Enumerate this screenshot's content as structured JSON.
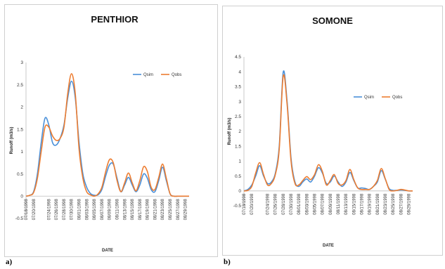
{
  "labels": {
    "a": "a)",
    "b": "b)"
  },
  "chart_data": [
    {
      "type": "line",
      "title": "PENTHIOR",
      "xlabel": "DATE",
      "ylabel": "Runoff (m3/s)",
      "ylim": [
        -0.5,
        3
      ],
      "yticks": [
        "3",
        "2.5",
        "2",
        "1.5",
        "1",
        "0.5",
        "0",
        "-0.5"
      ],
      "ytick_values": [
        3,
        2.5,
        2,
        1.5,
        1,
        0.5,
        0,
        -0.5
      ],
      "legend_position": "top-right",
      "x": [
        "07/18/1998",
        "07/19/1998",
        "07/20/1998",
        "07/21/1998",
        "07/22/1998",
        "07/23/1998",
        "07/24/1998",
        "07/25/1998",
        "07/26/1998",
        "07/27/1998",
        "07/28/1998",
        "07/29/1998",
        "07/30/1998",
        "07/31/1998",
        "08/01/1998",
        "08/02/1998",
        "08/03/1998",
        "08/04/1998",
        "08/05/1998",
        "08/06/1998",
        "08/07/1998",
        "08/08/1998",
        "08/09/1998",
        "08/10/1998",
        "08/11/1998",
        "08/12/1998",
        "08/13/1998",
        "08/14/1998",
        "08/15/1998",
        "08/16/1998",
        "08/17/1998",
        "08/18/1998",
        "08/19/1998",
        "08/20/1998",
        "08/21/1998",
        "08/22/1998",
        "08/23/1998",
        "08/24/1998",
        "08/25/1998",
        "08/26/1998",
        "08/27/1998",
        "08/28/1998",
        "08/29/1998",
        "08/30/1998"
      ],
      "xticks": [
        "07/18/1998",
        "07/20/1998",
        "07/24/1998",
        "07/26/1998",
        "07/28/1998",
        "07/30/1998",
        "08/01/1998",
        "08/03/1998",
        "08/05/1998",
        "08/07/1998",
        "08/09/1998",
        "08/11/1998",
        "08/13/1998",
        "08/15/1998",
        "08/17/1998",
        "08/19/1998",
        "08/21/1998",
        "08/23/1998",
        "08/25/1998",
        "08/27/1998",
        "08/29/1998"
      ],
      "series": [
        {
          "name": "Qsim",
          "color": "#4a90d9",
          "values": [
            0,
            0.02,
            0.1,
            0.5,
            1.2,
            1.75,
            1.6,
            1.2,
            1.15,
            1.3,
            1.6,
            2.2,
            2.58,
            2.2,
            1.2,
            0.5,
            0.2,
            0.06,
            0.02,
            0.03,
            0.15,
            0.45,
            0.7,
            0.72,
            0.4,
            0.1,
            0.25,
            0.42,
            0.25,
            0.1,
            0.25,
            0.5,
            0.4,
            0.15,
            0.1,
            0.35,
            0.65,
            0.35,
            0.05,
            0,
            0,
            0,
            0,
            0
          ]
        },
        {
          "name": "Qobs",
          "color": "#ed7d31",
          "values": [
            0,
            0.02,
            0.08,
            0.4,
            1.0,
            1.55,
            1.55,
            1.35,
            1.25,
            1.3,
            1.55,
            2.3,
            2.75,
            2.3,
            1.05,
            0.4,
            0.1,
            0.03,
            0,
            0.05,
            0.2,
            0.55,
            0.82,
            0.75,
            0.35,
            0.1,
            0.3,
            0.52,
            0.3,
            0.12,
            0.35,
            0.66,
            0.55,
            0.2,
            0.15,
            0.42,
            0.72,
            0.4,
            0.05,
            0,
            0,
            0,
            0,
            0
          ]
        }
      ]
    },
    {
      "type": "line",
      "title": "SOMONE",
      "xlabel": "DATE",
      "ylabel": "Runoff (m3/s)",
      "ylim": [
        -0.5,
        4.5
      ],
      "yticks": [
        "4.5",
        "4",
        "3.5",
        "3",
        "2.5",
        "2",
        "1.5",
        "1",
        "0.5",
        "0",
        "-0.5"
      ],
      "ytick_values": [
        4.5,
        4,
        3.5,
        3,
        2.5,
        2,
        1.5,
        1,
        0.5,
        0,
        -0.5
      ],
      "legend_position": "top-right",
      "x": [
        "07/18/1998",
        "07/19/1998",
        "07/20/1998",
        "07/21/1998",
        "07/22/1998",
        "07/23/1998",
        "07/24/1998",
        "07/25/1998",
        "07/26/1998",
        "07/27/1998",
        "07/28/1998",
        "07/29/1998",
        "07/30/1998",
        "07/31/1998",
        "08/01/1998",
        "08/02/1998",
        "08/03/1998",
        "08/04/1998",
        "08/05/1998",
        "08/06/1998",
        "08/07/1998",
        "08/08/1998",
        "08/09/1998",
        "08/10/1998",
        "08/11/1998",
        "08/12/1998",
        "08/13/1998",
        "08/14/1998",
        "08/15/1998",
        "08/16/1998",
        "08/17/1998",
        "08/18/1998",
        "08/19/1998",
        "08/20/1998",
        "08/21/1998",
        "08/22/1998",
        "08/23/1998",
        "08/24/1998",
        "08/25/1998",
        "08/26/1998",
        "08/27/1998",
        "08/28/1998",
        "08/29/1998",
        "08/30/1998"
      ],
      "xticks": [
        "07/18/1998",
        "07/20/1998",
        "07/24/1998",
        "07/26/1998",
        "07/28/1998",
        "07/30/1998",
        "08/01/1998",
        "08/03/1998",
        "08/05/1998",
        "08/07/1998",
        "08/09/1998",
        "08/11/1998",
        "08/13/1998",
        "08/15/1998",
        "08/17/1998",
        "08/19/1998",
        "08/21/1998",
        "08/23/1998",
        "08/25/1998",
        "08/27/1998",
        "08/29/1998"
      ],
      "series": [
        {
          "name": "Qsim",
          "color": "#4a90d9",
          "values": [
            0,
            0.05,
            0.2,
            0.5,
            0.85,
            0.5,
            0.25,
            0.3,
            0.6,
            1.5,
            3.98,
            3.0,
            1.1,
            0.3,
            0.15,
            0.3,
            0.4,
            0.3,
            0.5,
            0.78,
            0.6,
            0.25,
            0.3,
            0.5,
            0.3,
            0.15,
            0.3,
            0.62,
            0.35,
            0.1,
            0.1,
            0.08,
            0.05,
            0.15,
            0.3,
            0.68,
            0.4,
            0.08,
            0.02,
            0.02,
            0.03,
            0.02,
            0,
            0
          ]
        },
        {
          "name": "Qobs",
          "color": "#ed7d31",
          "values": [
            0,
            0.02,
            0.15,
            0.6,
            0.95,
            0.55,
            0.2,
            0.25,
            0.55,
            1.4,
            3.85,
            2.9,
            1.0,
            0.25,
            0.2,
            0.35,
            0.48,
            0.38,
            0.55,
            0.88,
            0.65,
            0.2,
            0.35,
            0.55,
            0.25,
            0.2,
            0.35,
            0.72,
            0.38,
            0.1,
            0.05,
            0.05,
            0.05,
            0.15,
            0.35,
            0.75,
            0.42,
            0.05,
            0,
            0.02,
            0.05,
            0.03,
            0,
            0
          ]
        }
      ]
    }
  ]
}
